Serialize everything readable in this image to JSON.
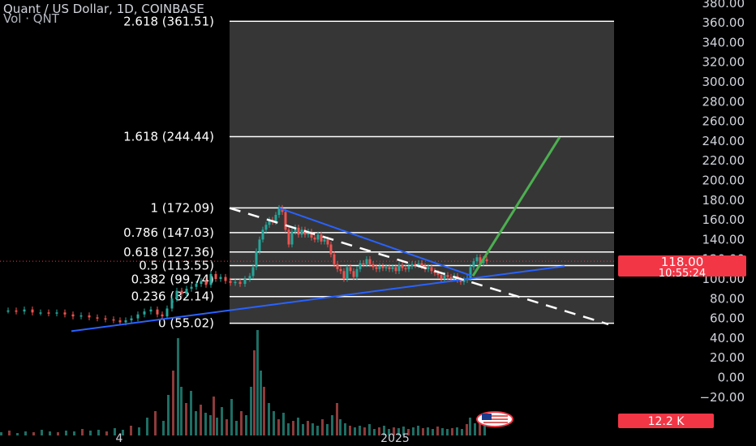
{
  "header": {
    "title": "Quant / US Dollar, 1D, COINBASE",
    "volume_label": "Vol · QNT"
  },
  "badges": {
    "price": "118.00",
    "countdown": "10:55:24",
    "volume": "12.2 K"
  },
  "colors": {
    "background": "#000000",
    "fib_zone": "#363636",
    "candle_up": "#26a69a",
    "candle_down": "#ef5350",
    "trendline": "#2962ff",
    "projection": "#4caf50",
    "dashed_line": "#ffffff",
    "badge": "#f23645"
  },
  "chart_data": {
    "type": "candlestick",
    "title": "Quant / US Dollar, 1D, COINBASE",
    "y_axis": {
      "ticks": [
        380,
        360,
        340,
        320,
        300,
        280,
        260,
        240,
        220,
        200,
        180,
        160,
        140,
        120,
        100,
        80,
        60,
        40,
        20,
        0,
        -20
      ],
      "tick_labels": [
        "380.00",
        "360.00",
        "340.00",
        "320.00",
        "300.00",
        "280.00",
        "260.00",
        "240.00",
        "220.00",
        "200.00",
        "180.00",
        "160.00",
        "140.00",
        "120.00",
        "100.00",
        "80.00",
        "60.00",
        "40.00",
        "20.00",
        "0.00",
        "−20.00"
      ],
      "range": [
        -26,
        388
      ]
    },
    "x_axis": {
      "tick_labels": [
        "4",
        "2025"
      ]
    },
    "current_price": 118.0,
    "fibonacci_levels": [
      {
        "ratio_label": "0 (55.02)",
        "price": 55.02
      },
      {
        "ratio_label": "0.236 (82.14)",
        "price": 82.14
      },
      {
        "ratio_label": "0.382 (99.74)",
        "price": 99.74
      },
      {
        "ratio_label": "0.5 (113.55)",
        "price": 113.55
      },
      {
        "ratio_label": "0.618 (127.36)",
        "price": 127.36
      },
      {
        "ratio_label": "0.786 (147.03)",
        "price": 147.03
      },
      {
        "ratio_label": "1 (172.09)",
        "price": 172.09
      },
      {
        "ratio_label": "1.618 (244.44)",
        "price": 244.44
      },
      {
        "ratio_label": "2.618 (361.51)",
        "price": 361.51
      }
    ],
    "price_series": [
      [
        0,
        68
      ],
      [
        10,
        68
      ],
      [
        20,
        67
      ],
      [
        30,
        69
      ],
      [
        40,
        66
      ],
      [
        50,
        66
      ],
      [
        60,
        65
      ],
      [
        70,
        66
      ],
      [
        80,
        64
      ],
      [
        90,
        62
      ],
      [
        100,
        63
      ],
      [
        110,
        61
      ],
      [
        120,
        60
      ],
      [
        130,
        59
      ],
      [
        140,
        58
      ],
      [
        148,
        56
      ],
      [
        155,
        58
      ],
      [
        162,
        60
      ],
      [
        170,
        64
      ],
      [
        178,
        67
      ],
      [
        186,
        69
      ],
      [
        194,
        64
      ],
      [
        200,
        62
      ],
      [
        206,
        70
      ],
      [
        212,
        80
      ],
      [
        218,
        88
      ],
      [
        224,
        85
      ],
      [
        230,
        90
      ],
      [
        236,
        92
      ],
      [
        242,
        95
      ],
      [
        248,
        98
      ],
      [
        254,
        94
      ],
      [
        260,
        105
      ],
      [
        266,
        100
      ],
      [
        272,
        102
      ],
      [
        278,
        98
      ],
      [
        284,
        96
      ],
      [
        290,
        97
      ],
      [
        296,
        95
      ],
      [
        302,
        100
      ],
      [
        308,
        103
      ],
      [
        312,
        112
      ],
      [
        316,
        128
      ],
      [
        320,
        140
      ],
      [
        324,
        150
      ],
      [
        328,
        155
      ],
      [
        332,
        160
      ],
      [
        336,
        158
      ],
      [
        340,
        165
      ],
      [
        344,
        172
      ],
      [
        348,
        168
      ],
      [
        352,
        150
      ],
      [
        356,
        135
      ],
      [
        360,
        148
      ],
      [
        364,
        152
      ],
      [
        368,
        145
      ],
      [
        372,
        150
      ],
      [
        376,
        145
      ],
      [
        380,
        148
      ],
      [
        384,
        142
      ],
      [
        388,
        140
      ],
      [
        392,
        145
      ],
      [
        396,
        138
      ],
      [
        400,
        140
      ],
      [
        404,
        135
      ],
      [
        408,
        125
      ],
      [
        412,
        115
      ],
      [
        416,
        110
      ],
      [
        420,
        108
      ],
      [
        424,
        100
      ],
      [
        428,
        112
      ],
      [
        432,
        108
      ],
      [
        436,
        102
      ],
      [
        440,
        110
      ],
      [
        444,
        116
      ],
      [
        448,
        115
      ],
      [
        452,
        120
      ],
      [
        456,
        115
      ],
      [
        460,
        112
      ],
      [
        464,
        110
      ],
      [
        468,
        113
      ],
      [
        472,
        111
      ],
      [
        476,
        112
      ],
      [
        480,
        110
      ],
      [
        484,
        112
      ],
      [
        488,
        108
      ],
      [
        492,
        114
      ],
      [
        496,
        111
      ],
      [
        500,
        110
      ],
      [
        504,
        113
      ],
      [
        508,
        115
      ],
      [
        512,
        114
      ],
      [
        516,
        116
      ],
      [
        520,
        113
      ],
      [
        524,
        110
      ],
      [
        528,
        112
      ],
      [
        532,
        108
      ],
      [
        536,
        106
      ],
      [
        540,
        104
      ],
      [
        544,
        100
      ],
      [
        548,
        104
      ],
      [
        552,
        102
      ],
      [
        556,
        101
      ],
      [
        560,
        103
      ],
      [
        564,
        99
      ],
      [
        568,
        97
      ],
      [
        572,
        99
      ],
      [
        576,
        101
      ],
      [
        580,
        112
      ],
      [
        584,
        118
      ],
      [
        588,
        122
      ],
      [
        592,
        116
      ],
      [
        596,
        120
      ],
      [
        600,
        118
      ]
    ],
    "volume_series": [
      [
        0,
        4
      ],
      [
        10,
        6
      ],
      [
        20,
        3
      ],
      [
        30,
        5
      ],
      [
        40,
        4
      ],
      [
        50,
        7
      ],
      [
        60,
        5
      ],
      [
        70,
        4
      ],
      [
        80,
        6
      ],
      [
        90,
        5
      ],
      [
        100,
        8
      ],
      [
        110,
        6
      ],
      [
        120,
        7
      ],
      [
        130,
        5
      ],
      [
        140,
        9
      ],
      [
        150,
        7
      ],
      [
        160,
        12
      ],
      [
        170,
        10
      ],
      [
        180,
        22
      ],
      [
        190,
        30
      ],
      [
        200,
        18
      ],
      [
        206,
        50
      ],
      [
        212,
        80
      ],
      [
        218,
        120
      ],
      [
        222,
        60
      ],
      [
        228,
        40
      ],
      [
        234,
        55
      ],
      [
        240,
        30
      ],
      [
        246,
        38
      ],
      [
        252,
        28
      ],
      [
        258,
        25
      ],
      [
        262,
        48
      ],
      [
        266,
        22
      ],
      [
        272,
        35
      ],
      [
        278,
        20
      ],
      [
        284,
        45
      ],
      [
        290,
        18
      ],
      [
        296,
        30
      ],
      [
        302,
        25
      ],
      [
        308,
        60
      ],
      [
        312,
        105
      ],
      [
        316,
        130
      ],
      [
        320,
        80
      ],
      [
        324,
        60
      ],
      [
        330,
        40
      ],
      [
        336,
        30
      ],
      [
        342,
        20
      ],
      [
        348,
        28
      ],
      [
        354,
        15
      ],
      [
        360,
        18
      ],
      [
        366,
        22
      ],
      [
        372,
        14
      ],
      [
        378,
        18
      ],
      [
        384,
        15
      ],
      [
        390,
        12
      ],
      [
        396,
        20
      ],
      [
        402,
        14
      ],
      [
        408,
        25
      ],
      [
        414,
        40
      ],
      [
        418,
        20
      ],
      [
        424,
        15
      ],
      [
        430,
        12
      ],
      [
        436,
        10
      ],
      [
        442,
        12
      ],
      [
        448,
        10
      ],
      [
        454,
        14
      ],
      [
        460,
        8
      ],
      [
        466,
        10
      ],
      [
        472,
        12
      ],
      [
        478,
        8
      ],
      [
        484,
        10
      ],
      [
        490,
        9
      ],
      [
        496,
        11
      ],
      [
        502,
        8
      ],
      [
        508,
        10
      ],
      [
        514,
        12
      ],
      [
        520,
        9
      ],
      [
        526,
        10
      ],
      [
        532,
        8
      ],
      [
        538,
        11
      ],
      [
        544,
        9
      ],
      [
        550,
        8
      ],
      [
        556,
        9
      ],
      [
        562,
        10
      ],
      [
        568,
        8
      ],
      [
        574,
        14
      ],
      [
        578,
        22
      ],
      [
        584,
        15
      ],
      [
        590,
        18
      ],
      [
        596,
        12
      ]
    ],
    "trendlines": [
      {
        "kind": "support",
        "points": [
          [
            88,
            47
          ],
          [
            696,
            113
          ]
        ]
      },
      {
        "kind": "resistance",
        "points": [
          [
            344,
            172
          ],
          [
            582,
            103
          ]
        ]
      }
    ],
    "dashed_projection": {
      "points": [
        [
          283,
          172
        ],
        [
          750,
          54
        ]
      ]
    },
    "target_projection": {
      "points": [
        [
          583,
          103
        ],
        [
          690,
          244
        ]
      ]
    }
  }
}
